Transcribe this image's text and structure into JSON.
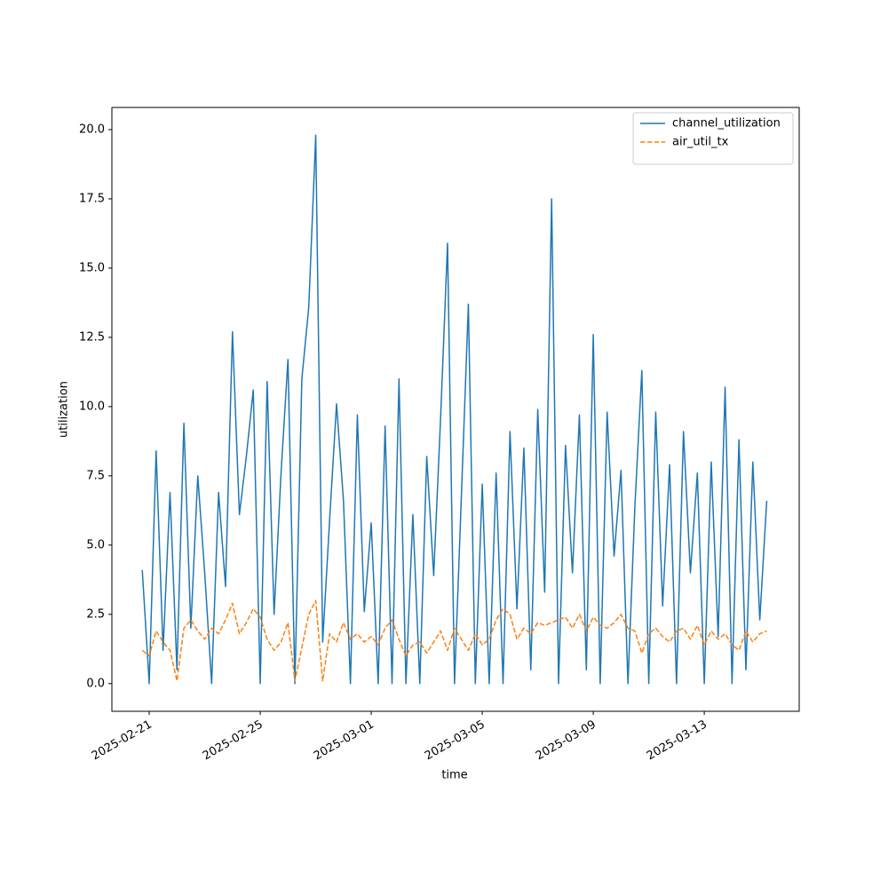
{
  "chart_data": {
    "type": "line",
    "xlabel": "time",
    "ylabel": "utilization",
    "legend": "upper right",
    "xlim": [
      "2025-02-19 15:44",
      "2025-03-16 10:05"
    ],
    "xticks": [
      "2025-02-21",
      "2025-02-25",
      "2025-03-01",
      "2025-03-05",
      "2025-03-09",
      "2025-03-13"
    ],
    "ylim": [
      -1.0,
      20.8
    ],
    "yticks": [
      {
        "value": 0,
        "label": "0.0"
      },
      {
        "value": 2.5,
        "label": "2.5"
      },
      {
        "value": 5,
        "label": "5.0"
      },
      {
        "value": 7.5,
        "label": "7.5"
      },
      {
        "value": 10,
        "label": "10.0"
      },
      {
        "value": 12.5,
        "label": "12.5"
      },
      {
        "value": 15,
        "label": "15.0"
      },
      {
        "value": 17.5,
        "label": "17.5"
      },
      {
        "value": 20,
        "label": "20.0"
      }
    ],
    "x": [
      "2025-02-20 18:00",
      "2025-02-21 00:00",
      "2025-02-21 06:00",
      "2025-02-21 12:00",
      "2025-02-21 18:00",
      "2025-02-22 00:00",
      "2025-02-22 06:00",
      "2025-02-22 12:00",
      "2025-02-22 18:00",
      "2025-02-23 00:00",
      "2025-02-23 06:00",
      "2025-02-23 12:00",
      "2025-02-23 18:00",
      "2025-02-24 00:00",
      "2025-02-24 06:00",
      "2025-02-24 12:00",
      "2025-02-24 18:00",
      "2025-02-25 00:00",
      "2025-02-25 06:00",
      "2025-02-25 12:00",
      "2025-02-25 18:00",
      "2025-02-26 00:00",
      "2025-02-26 06:00",
      "2025-02-26 12:00",
      "2025-02-26 18:00",
      "2025-02-27 00:00",
      "2025-02-27 06:00",
      "2025-02-27 12:00",
      "2025-02-27 18:00",
      "2025-02-28 00:00",
      "2025-02-28 06:00",
      "2025-02-28 12:00",
      "2025-02-28 18:00",
      "2025-03-01 00:00",
      "2025-03-01 06:00",
      "2025-03-01 12:00",
      "2025-03-01 18:00",
      "2025-03-02 00:00",
      "2025-03-02 06:00",
      "2025-03-02 12:00",
      "2025-03-02 18:00",
      "2025-03-03 00:00",
      "2025-03-03 06:00",
      "2025-03-03 12:00",
      "2025-03-03 18:00",
      "2025-03-04 00:00",
      "2025-03-04 06:00",
      "2025-03-04 12:00",
      "2025-03-04 18:00",
      "2025-03-05 00:00",
      "2025-03-05 06:00",
      "2025-03-05 12:00",
      "2025-03-05 18:00",
      "2025-03-06 00:00",
      "2025-03-06 06:00",
      "2025-03-06 12:00",
      "2025-03-06 18:00",
      "2025-03-07 00:00",
      "2025-03-07 06:00",
      "2025-03-07 12:00",
      "2025-03-07 18:00",
      "2025-03-08 00:00",
      "2025-03-08 06:00",
      "2025-03-08 12:00",
      "2025-03-08 18:00",
      "2025-03-09 00:00",
      "2025-03-09 06:00",
      "2025-03-09 12:00",
      "2025-03-09 18:00",
      "2025-03-10 00:00",
      "2025-03-10 06:00",
      "2025-03-10 12:00",
      "2025-03-10 18:00",
      "2025-03-11 00:00",
      "2025-03-11 06:00",
      "2025-03-11 12:00",
      "2025-03-11 18:00",
      "2025-03-12 00:00",
      "2025-03-12 06:00",
      "2025-03-12 12:00",
      "2025-03-12 18:00",
      "2025-03-13 00:00",
      "2025-03-13 06:00",
      "2025-03-13 12:00",
      "2025-03-13 18:00",
      "2025-03-14 00:00",
      "2025-03-14 06:00",
      "2025-03-14 12:00",
      "2025-03-14 18:00",
      "2025-03-15 00:00",
      "2025-03-15 06:00"
    ],
    "series": [
      {
        "name": "channel_utilization",
        "color": "#1f77b4",
        "linestyle": "solid",
        "values": [
          4.1,
          0.0,
          8.4,
          1.2,
          6.9,
          0.5,
          9.4,
          2.0,
          7.5,
          4.0,
          0.0,
          6.9,
          3.5,
          12.7,
          6.1,
          8.2,
          10.6,
          0.0,
          10.9,
          2.5,
          7.6,
          11.7,
          0.0,
          11.0,
          13.6,
          19.8,
          1.5,
          5.9,
          10.1,
          6.6,
          0.0,
          9.7,
          2.6,
          5.8,
          0.0,
          9.3,
          0.0,
          11.0,
          0.0,
          6.1,
          0.0,
          8.2,
          3.9,
          9.6,
          15.9,
          0.0,
          6.8,
          13.7,
          0.0,
          7.2,
          0.0,
          7.6,
          0.0,
          9.1,
          2.7,
          8.5,
          0.5,
          9.9,
          3.3,
          17.5,
          0.0,
          8.6,
          4.0,
          9.7,
          0.5,
          12.6,
          0.0,
          9.8,
          4.6,
          7.7,
          0.0,
          6.4,
          11.3,
          0.0,
          9.8,
          2.8,
          7.9,
          0.0,
          9.1,
          4.0,
          7.6,
          0.0,
          8.0,
          1.7,
          10.7,
          0.0,
          8.8,
          0.5,
          8.0,
          2.3,
          6.6
        ]
      },
      {
        "name": "air_util_tx",
        "color": "#ff7f0e",
        "linestyle": "dashed",
        "values": [
          1.2,
          1.0,
          1.9,
          1.5,
          1.2,
          0.1,
          2.0,
          2.3,
          1.9,
          1.6,
          2.0,
          1.8,
          2.3,
          2.9,
          1.8,
          2.2,
          2.7,
          2.4,
          1.6,
          1.2,
          1.5,
          2.2,
          0.1,
          1.3,
          2.5,
          3.0,
          0.1,
          1.8,
          1.5,
          2.2,
          1.6,
          1.8,
          1.5,
          1.7,
          1.4,
          2.0,
          2.3,
          1.6,
          1.0,
          1.4,
          1.5,
          1.1,
          1.5,
          1.9,
          1.2,
          2.0,
          1.6,
          1.2,
          1.8,
          1.4,
          1.6,
          2.3,
          2.7,
          2.5,
          1.6,
          2.0,
          1.8,
          2.2,
          2.1,
          2.2,
          2.3,
          2.4,
          2.0,
          2.5,
          1.9,
          2.4,
          2.1,
          2.0,
          2.2,
          2.5,
          2.0,
          1.9,
          1.1,
          1.8,
          2.0,
          1.7,
          1.5,
          1.9,
          2.0,
          1.6,
          2.1,
          1.4,
          1.9,
          1.6,
          1.8,
          1.4,
          1.2,
          1.9,
          1.5,
          1.8,
          1.9
        ]
      }
    ]
  }
}
